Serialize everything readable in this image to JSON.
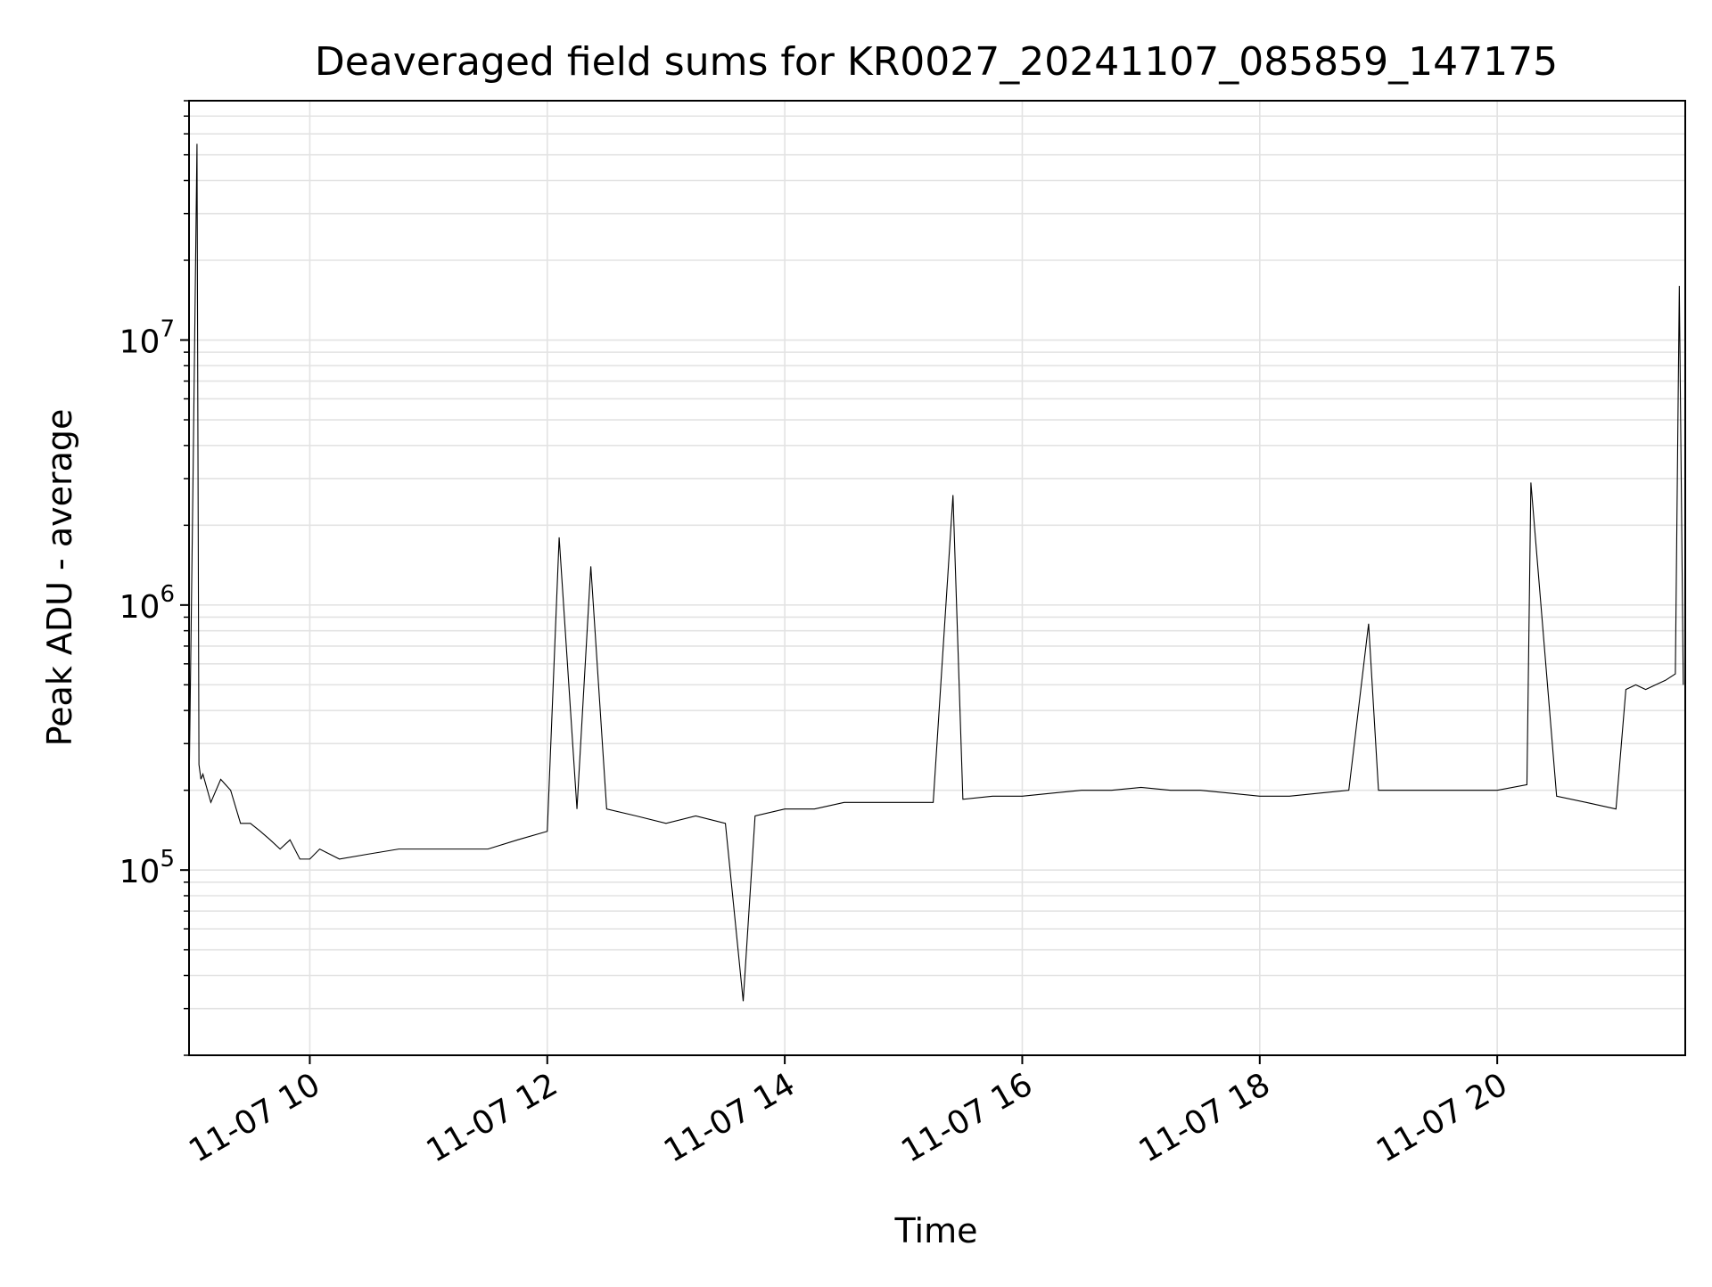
{
  "chart_data": {
    "type": "line",
    "title": "Deaveraged field sums for KR0027_20241107_085859_147175",
    "xlabel": "Time",
    "ylabel": "Peak ADU - average",
    "xscale": "time",
    "yscale": "log",
    "xlim": [
      "2024-11-07 08:58:59",
      "2024-11-07 21:35:00"
    ],
    "ylim": [
      20000,
      80000000
    ],
    "grid": true,
    "colors": {
      "line": "#000000",
      "grid": "#e3e3e3",
      "background": "#ffffff"
    },
    "x_ticks": [
      {
        "value": "2024-11-07 10:00",
        "label": "11-07 10"
      },
      {
        "value": "2024-11-07 12:00",
        "label": "11-07 12"
      },
      {
        "value": "2024-11-07 14:00",
        "label": "11-07 14"
      },
      {
        "value": "2024-11-07 16:00",
        "label": "11-07 16"
      },
      {
        "value": "2024-11-07 18:00",
        "label": "11-07 18"
      },
      {
        "value": "2024-11-07 20:00",
        "label": "11-07 20"
      }
    ],
    "y_ticks": [
      {
        "value": 100000,
        "base": "10",
        "exp": "5"
      },
      {
        "value": 1000000,
        "base": "10",
        "exp": "6"
      },
      {
        "value": 10000000,
        "base": "10",
        "exp": "7"
      }
    ],
    "series": [
      {
        "color": "#000000",
        "x": [
          "2024-11-07 08:59:00",
          "2024-11-07 09:01:00",
          "2024-11-07 09:03:00",
          "2024-11-07 09:04:00",
          "2024-11-07 09:05:00",
          "2024-11-07 09:06:00",
          "2024-11-07 09:10:00",
          "2024-11-07 09:15:00",
          "2024-11-07 09:20:00",
          "2024-11-07 09:25:00",
          "2024-11-07 09:30:00",
          "2024-11-07 09:35:00",
          "2024-11-07 09:40:00",
          "2024-11-07 09:45:00",
          "2024-11-07 09:50:00",
          "2024-11-07 09:55:00",
          "2024-11-07 10:00:00",
          "2024-11-07 10:05:00",
          "2024-11-07 10:15:00",
          "2024-11-07 10:30:00",
          "2024-11-07 10:45:00",
          "2024-11-07 11:00:00",
          "2024-11-07 11:15:00",
          "2024-11-07 11:30:00",
          "2024-11-07 11:45:00",
          "2024-11-07 12:00:00",
          "2024-11-07 12:06:00",
          "2024-11-07 12:15:00",
          "2024-11-07 12:22:00",
          "2024-11-07 12:30:00",
          "2024-11-07 12:45:00",
          "2024-11-07 13:00:00",
          "2024-11-07 13:15:00",
          "2024-11-07 13:30:00",
          "2024-11-07 13:39:00",
          "2024-11-07 13:45:00",
          "2024-11-07 14:00:00",
          "2024-11-07 14:15:00",
          "2024-11-07 14:30:00",
          "2024-11-07 14:45:00",
          "2024-11-07 15:00:00",
          "2024-11-07 15:15:00",
          "2024-11-07 15:25:00",
          "2024-11-07 15:30:00",
          "2024-11-07 15:45:00",
          "2024-11-07 16:00:00",
          "2024-11-07 16:15:00",
          "2024-11-07 16:30:00",
          "2024-11-07 16:45:00",
          "2024-11-07 17:00:00",
          "2024-11-07 17:15:00",
          "2024-11-07 17:30:00",
          "2024-11-07 17:45:00",
          "2024-11-07 18:00:00",
          "2024-11-07 18:15:00",
          "2024-11-07 18:30:00",
          "2024-11-07 18:45:00",
          "2024-11-07 18:55:00",
          "2024-11-07 19:00:00",
          "2024-11-07 19:15:00",
          "2024-11-07 19:30:00",
          "2024-11-07 19:45:00",
          "2024-11-07 20:00:00",
          "2024-11-07 20:15:00",
          "2024-11-07 20:17:00",
          "2024-11-07 20:30:00",
          "2024-11-07 20:45:00",
          "2024-11-07 21:00:00",
          "2024-11-07 21:05:00",
          "2024-11-07 21:10:00",
          "2024-11-07 21:15:00",
          "2024-11-07 21:20:00",
          "2024-11-07 21:25:00",
          "2024-11-07 21:30:00",
          "2024-11-07 21:32:00",
          "2024-11-07 21:34:00"
        ],
        "y": [
          200000,
          3000000,
          55000000,
          250000,
          220000,
          230000,
          180000,
          220000,
          200000,
          150000,
          150000,
          140000,
          130000,
          120000,
          130000,
          110000,
          110000,
          120000,
          110000,
          115000,
          120000,
          120000,
          120000,
          120000,
          130000,
          140000,
          1800000,
          170000,
          1400000,
          170000,
          160000,
          150000,
          160000,
          150000,
          32000,
          160000,
          170000,
          170000,
          180000,
          180000,
          180000,
          180000,
          2600000,
          185000,
          190000,
          190000,
          195000,
          200000,
          200000,
          205000,
          200000,
          200000,
          195000,
          190000,
          190000,
          195000,
          200000,
          850000,
          200000,
          200000,
          200000,
          200000,
          200000,
          210000,
          2900000,
          190000,
          180000,
          170000,
          480000,
          500000,
          480000,
          500000,
          520000,
          550000,
          16000000,
          500000
        ]
      }
    ]
  }
}
